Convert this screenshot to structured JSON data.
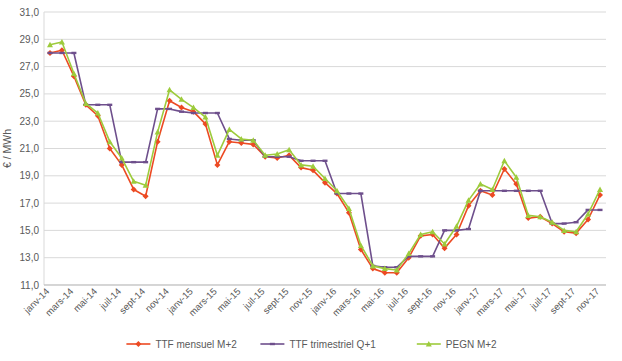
{
  "chart_data": {
    "type": "line",
    "y_label": "€ / MWh",
    "categories": [
      "janv-14",
      null,
      "mars-14",
      null,
      "mai-14",
      null,
      "juil-14",
      null,
      "sept-14",
      null,
      "nov-14",
      null,
      "janv-15",
      null,
      "mars-15",
      null,
      "mai-15",
      null,
      "juil-15",
      null,
      "sept-15",
      null,
      "nov-15",
      null,
      "janv-16",
      null,
      "mars-16",
      null,
      "mai-16",
      null,
      "juil-16",
      null,
      "sept-16",
      null,
      "nov-16",
      null,
      "janv-17",
      null,
      "mars-17",
      null,
      "mai-17",
      null,
      "juil-17",
      null,
      "sept-17",
      null,
      "nov-17"
    ],
    "series": [
      {
        "name": "TTF mensuel M+2",
        "color": "#ec4a23",
        "marker": "diamond",
        "line_style": "solid",
        "values": [
          28.0,
          28.2,
          26.3,
          24.2,
          23.4,
          21.0,
          19.8,
          18.0,
          17.5,
          21.5,
          24.5,
          24.0,
          23.7,
          22.8,
          19.8,
          21.5,
          21.4,
          21.3,
          20.4,
          20.3,
          20.5,
          19.6,
          19.4,
          18.5,
          17.7,
          16.3,
          13.6,
          12.2,
          11.9,
          11.9,
          13.0,
          14.6,
          14.7,
          13.7,
          14.7,
          16.8,
          17.9,
          17.6,
          19.5,
          18.4,
          15.9,
          16.0,
          15.5,
          14.9,
          14.8,
          15.8,
          17.6
        ]
      },
      {
        "name": "TTF trimestriel Q+1",
        "color": "#6e4f8c",
        "marker": "square",
        "line_style": "solid",
        "values": [
          28.0,
          28.0,
          28.0,
          24.2,
          24.2,
          24.2,
          20.0,
          20.0,
          20.0,
          23.9,
          23.9,
          23.7,
          23.6,
          23.6,
          23.6,
          21.7,
          21.6,
          21.6,
          20.4,
          20.4,
          20.4,
          20.1,
          20.1,
          20.1,
          17.7,
          17.7,
          17.7,
          12.4,
          12.3,
          12.3,
          13.1,
          13.1,
          13.1,
          15.0,
          15.0,
          15.1,
          17.9,
          17.9,
          17.9,
          17.9,
          17.9,
          17.9,
          15.5,
          15.5,
          15.6,
          16.5,
          16.5
        ]
      },
      {
        "name": "PEGN M+2",
        "color": "#9dcb3c",
        "marker": "triangle",
        "line_style": "solid",
        "values": [
          28.6,
          28.8,
          26.5,
          24.3,
          23.6,
          21.5,
          20.3,
          18.6,
          18.3,
          22.2,
          25.3,
          24.6,
          24.0,
          23.3,
          20.5,
          22.4,
          21.7,
          21.6,
          20.5,
          20.6,
          20.9,
          19.8,
          19.7,
          18.8,
          17.9,
          16.6,
          13.9,
          12.4,
          12.2,
          12.1,
          13.3,
          14.7,
          14.9,
          14.0,
          15.3,
          17.2,
          18.4,
          18.0,
          20.1,
          18.9,
          16.1,
          16.0,
          15.6,
          15.0,
          14.9,
          16.2,
          18.0
        ]
      }
    ],
    "ylim": [
      11,
      31
    ],
    "yticks": [
      {
        "value": 11,
        "label": "11,0"
      },
      {
        "value": 13,
        "label": "13,0"
      },
      {
        "value": 15,
        "label": "15,0"
      },
      {
        "value": 17,
        "label": "17,0"
      },
      {
        "value": 19,
        "label": "19,0"
      },
      {
        "value": 21,
        "label": "21,0"
      },
      {
        "value": 23,
        "label": "23,0"
      },
      {
        "value": 25,
        "label": "25,0"
      },
      {
        "value": 27,
        "label": "27,0"
      },
      {
        "value": 29,
        "label": "29,0"
      },
      {
        "value": 31,
        "label": "31,0"
      }
    ],
    "grid": true,
    "legend": "bottom"
  }
}
